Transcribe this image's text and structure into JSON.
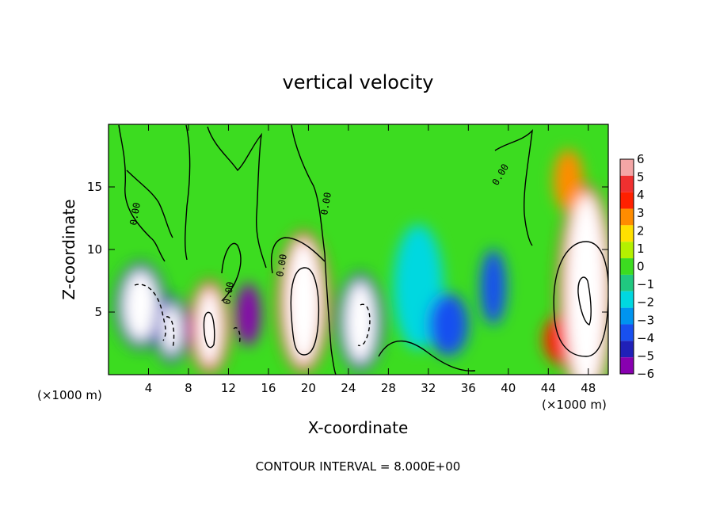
{
  "chart_data": {
    "type": "heatmap",
    "title": "vertical velocity",
    "xlabel": "X-coordinate",
    "ylabel": "Z-coordinate",
    "x_unit": "(×1000 m)",
    "x_unit_right": "(×1000 m)",
    "xlim": [
      0,
      50
    ],
    "ylim": [
      0,
      20
    ],
    "x_ticks": [
      4,
      8,
      12,
      16,
      20,
      24,
      28,
      32,
      36,
      40,
      44,
      48
    ],
    "y_ticks": [
      5,
      10,
      15
    ],
    "colorbar": {
      "levels": [
        6,
        5,
        4,
        3,
        2,
        1,
        0,
        -1,
        -2,
        -3,
        -4,
        -5,
        -6
      ],
      "colors": [
        "#f4a6a6",
        "#f03030",
        "#ff2000",
        "#ff8c00",
        "#ffe000",
        "#b4f000",
        "#3cdc20",
        "#20c880",
        "#00d8e0",
        "#0094f0",
        "#1850f0",
        "#2020b8",
        "#8800b0"
      ]
    },
    "contour_label": "0.00",
    "annotation": "CONTOUR INTERVAL = 8.000E+00",
    "cells": [
      {
        "x": 3.2,
        "z": 5.5,
        "w": 3.4,
        "h": 5.6,
        "v": -7
      },
      {
        "x": 6.3,
        "z": 3.6,
        "w": 2.0,
        "h": 4.0,
        "v": -7
      },
      {
        "x": 10.1,
        "z": 3.8,
        "w": 2.5,
        "h": 6.2,
        "v": 7
      },
      {
        "x": 14.0,
        "z": 4.8,
        "w": 2.4,
        "h": 5.0,
        "v": -6
      },
      {
        "x": 19.5,
        "z": 5.8,
        "w": 3.6,
        "h": 10.0,
        "v": 7
      },
      {
        "x": 25.2,
        "z": 4.2,
        "w": 3.0,
        "h": 6.5,
        "v": -7
      },
      {
        "x": 31.0,
        "z": 7.0,
        "w": 5.0,
        "h": 10.0,
        "v": -2.5
      },
      {
        "x": 34.0,
        "z": 4.0,
        "w": 4.0,
        "h": 5.0,
        "v": -4.5
      },
      {
        "x": 38.5,
        "z": 7.0,
        "w": 2.6,
        "h": 6.0,
        "v": -4.5
      },
      {
        "x": 45.5,
        "z": 2.8,
        "w": 4.0,
        "h": 4.0,
        "v": 3.5
      },
      {
        "x": 47.8,
        "z": 6.5,
        "w": 4.2,
        "h": 16.0,
        "v": 7
      },
      {
        "x": 46.0,
        "z": 15.5,
        "w": 3.0,
        "h": 5.0,
        "v": 3
      }
    ]
  }
}
